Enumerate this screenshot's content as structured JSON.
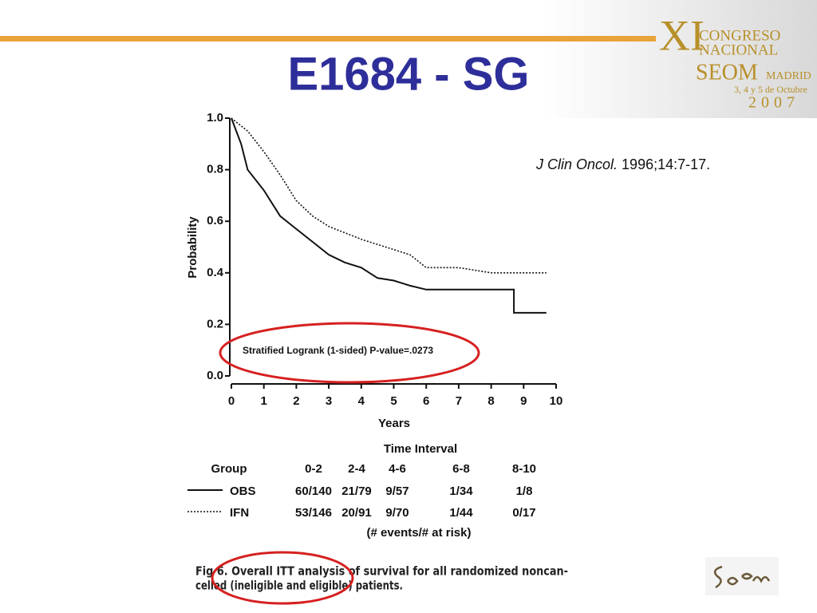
{
  "slide": {
    "title": "E1684 - SG",
    "citation": {
      "journal": "J Clin Oncol.",
      "details": " 1996;14:7-17."
    },
    "logo": {
      "numeral": "XI",
      "line1": "CONGRESO",
      "line2": "NACIONAL",
      "brand": "SEOM",
      "city": "MADRID",
      "dates": "3, 4 y 5 de Octubre",
      "year": "2007"
    },
    "caption": [
      "Fig 6.   Overall ITT analysis of survival for all randomized noncan-",
      "celled (ineligible and eligible) patients."
    ]
  },
  "chart_data": {
    "type": "line",
    "y_label": "Probability",
    "x_label": "Years",
    "annotation": "Stratified Logrank (1-sided) P-value=.0273",
    "xlim": [
      0,
      10
    ],
    "xticks": [
      0,
      1,
      2,
      3,
      4,
      5,
      6,
      7,
      8,
      9,
      10
    ],
    "ylim": [
      0,
      1
    ],
    "yticks": [
      {
        "value": 0,
        "label": "0.0"
      },
      0.2,
      0.4,
      0.6,
      0.8,
      {
        "value": 1,
        "label": "1.0"
      }
    ],
    "series": [
      {
        "name": "OBS",
        "color": "#111111",
        "dash": "solid",
        "x": [
          0,
          0.3,
          0.5,
          1,
          1.5,
          2,
          2.5,
          3,
          3.5,
          4,
          4.5,
          5,
          5.5,
          6,
          7,
          8,
          8.7,
          8.7,
          9.7
        ],
        "values": [
          1,
          0.9,
          0.8,
          0.72,
          0.62,
          0.57,
          0.52,
          0.47,
          0.44,
          0.42,
          0.38,
          0.37,
          0.35,
          0.335,
          0.335,
          0.335,
          0.335,
          0.245,
          0.245
        ]
      },
      {
        "name": "IFN",
        "color": "#111111",
        "dash": "dotted",
        "x": [
          0,
          0.5,
          1,
          1.5,
          2,
          2.5,
          3,
          4,
          5,
          5.5,
          6,
          7,
          8,
          9.7
        ],
        "values": [
          1,
          0.95,
          0.87,
          0.78,
          0.68,
          0.62,
          0.58,
          0.53,
          0.49,
          0.47,
          0.42,
          0.42,
          0.4,
          0.4
        ]
      }
    ]
  },
  "table": {
    "title": "Time Interval",
    "headers": [
      "Group",
      "0-2",
      "2-4",
      "4-6",
      "6-8",
      "8-10"
    ],
    "rows": [
      [
        "60/140",
        "21/79",
        "9/57",
        "1/34",
        "1/8"
      ],
      [
        "53/146",
        "20/91",
        "9/70",
        "1/44",
        "0/17"
      ]
    ],
    "note": "(# events/# at risk)"
  }
}
